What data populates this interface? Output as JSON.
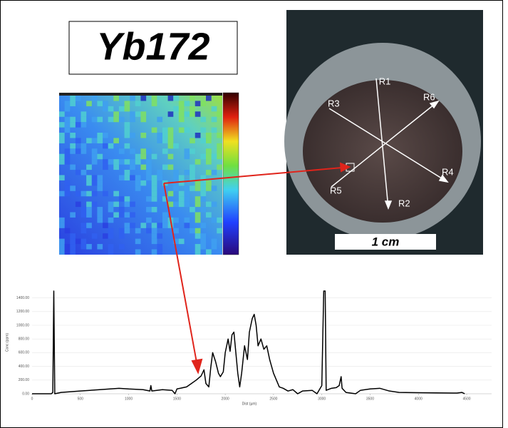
{
  "figure_title": "Yb172",
  "photo": {
    "labels": [
      "R1",
      "R2",
      "R3",
      "R4",
      "R5",
      "R6"
    ],
    "scale_bar": "1 cm"
  },
  "chart_data": {
    "type": "line",
    "xlabel": "Dist (µm)",
    "ylabel": "Conc (ppm)",
    "color": "#000000",
    "x": [
      0,
      200,
      215,
      225,
      235,
      300,
      500,
      700,
      900,
      1000,
      1150,
      1220,
      1230,
      1240,
      1350,
      1450,
      1480,
      1500,
      1600,
      1650,
      1700,
      1750,
      1780,
      1800,
      1830,
      1850,
      1870,
      1900,
      1930,
      1950,
      1980,
      2000,
      2030,
      2050,
      2070,
      2090,
      2110,
      2130,
      2150,
      2170,
      2200,
      2230,
      2250,
      2280,
      2300,
      2320,
      2340,
      2370,
      2400,
      2430,
      2460,
      2500,
      2530,
      2560,
      2600,
      2650,
      2700,
      2750,
      2800,
      2900,
      2950,
      3000,
      3020,
      3035,
      3045,
      3100,
      3150,
      3180,
      3200,
      3210,
      3250,
      3350,
      3400,
      3500,
      3600,
      3700,
      3800,
      4000,
      4400,
      4450,
      4480
    ],
    "values": [
      0,
      0,
      20,
      1500,
      0,
      20,
      40,
      60,
      80,
      70,
      60,
      40,
      120,
      40,
      60,
      50,
      0,
      70,
      100,
      150,
      200,
      260,
      350,
      150,
      100,
      380,
      600,
      470,
      300,
      250,
      320,
      600,
      800,
      620,
      860,
      900,
      600,
      300,
      100,
      300,
      700,
      500,
      900,
      1100,
      1160,
      1000,
      700,
      800,
      650,
      700,
      500,
      300,
      200,
      100,
      80,
      40,
      60,
      0,
      40,
      50,
      0,
      120,
      1500,
      1500,
      50,
      80,
      90,
      120,
      250,
      80,
      20,
      0,
      50,
      70,
      80,
      40,
      20,
      15,
      10,
      20,
      0
    ],
    "xlim": [
      0,
      4500
    ],
    "ylim": [
      0,
      1500
    ],
    "xticks": [
      0,
      500,
      1000,
      1500,
      2000,
      2500,
      3000,
      3500,
      4000,
      4500
    ],
    "yticks": [
      {
        "value": 0,
        "label": "0.00"
      },
      {
        "value": 200,
        "label": "200.00"
      },
      {
        "value": 400,
        "label": "400.00"
      },
      {
        "value": 600,
        "label": "600.00"
      },
      {
        "value": 800,
        "label": "800.00"
      },
      {
        "value": 1000,
        "label": "1000.00"
      },
      {
        "value": 1200,
        "label": "1200.00"
      },
      {
        "value": 1400,
        "label": "1400.00"
      }
    ],
    "grid": true
  }
}
